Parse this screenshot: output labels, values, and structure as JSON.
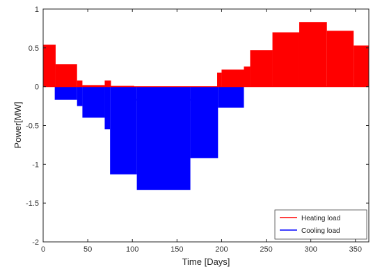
{
  "chart_data": {
    "type": "area",
    "title": "",
    "xlabel": "Time [Days]",
    "ylabel": "Power[MW]",
    "xlim": [
      0,
      365
    ],
    "ylim": [
      -2,
      1
    ],
    "x_ticks": [
      "0",
      "50",
      "100",
      "150",
      "200",
      "250",
      "300",
      "350"
    ],
    "y_ticks": [
      "1",
      "0.5",
      "0",
      "-0.5",
      "-1",
      "-1.5",
      "-2"
    ],
    "grid": false,
    "legend_position": "bottom-right",
    "series": [
      {
        "name": "Heating load",
        "color": "#ff0000",
        "steps": [
          {
            "x0": 0,
            "x1": 14,
            "y": 0.54
          },
          {
            "x0": 14,
            "x1": 38,
            "y": 0.29
          },
          {
            "x0": 38,
            "x1": 44,
            "y": 0.08
          },
          {
            "x0": 44,
            "x1": 69,
            "y": 0.02
          },
          {
            "x0": 69,
            "x1": 76,
            "y": 0.08
          },
          {
            "x0": 76,
            "x1": 102,
            "y": 0.01
          },
          {
            "x0": 102,
            "x1": 195,
            "y": 0.0
          },
          {
            "x0": 195,
            "x1": 200,
            "y": 0.18
          },
          {
            "x0": 200,
            "x1": 225,
            "y": 0.22
          },
          {
            "x0": 225,
            "x1": 232,
            "y": 0.26
          },
          {
            "x0": 232,
            "x1": 257,
            "y": 0.47
          },
          {
            "x0": 257,
            "x1": 287,
            "y": 0.7
          },
          {
            "x0": 287,
            "x1": 318,
            "y": 0.83
          },
          {
            "x0": 318,
            "x1": 348,
            "y": 0.72
          },
          {
            "x0": 348,
            "x1": 365,
            "y": 0.53
          }
        ]
      },
      {
        "name": "Cooling load",
        "color": "#0000ff",
        "steps": [
          {
            "x0": 13,
            "x1": 38,
            "y": -0.17
          },
          {
            "x0": 38,
            "x1": 44,
            "y": -0.25
          },
          {
            "x0": 44,
            "x1": 69,
            "y": -0.4
          },
          {
            "x0": 69,
            "x1": 75,
            "y": -0.55
          },
          {
            "x0": 75,
            "x1": 105,
            "y": -1.13
          },
          {
            "x0": 105,
            "x1": 165,
            "y": -1.33
          },
          {
            "x0": 165,
            "x1": 196,
            "y": -0.92
          },
          {
            "x0": 196,
            "x1": 225,
            "y": -0.27
          }
        ],
        "fringe_top": [
          {
            "x0": 102,
            "x1": 168,
            "y": -0.16
          }
        ]
      }
    ]
  }
}
